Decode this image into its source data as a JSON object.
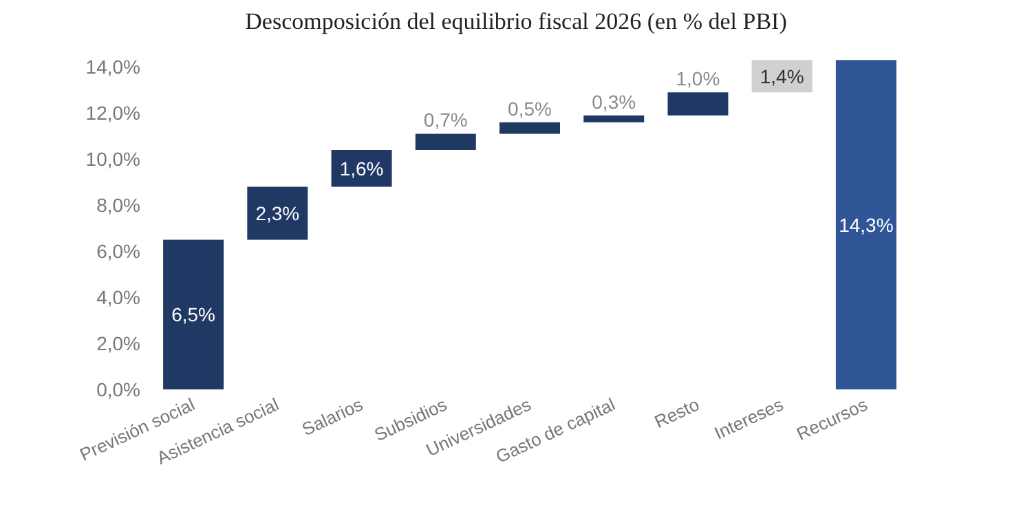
{
  "chart_data": {
    "type": "bar",
    "title": "Descomposición del equilibrio fiscal 2026 (en % del PBI)",
    "categories": [
      "Previsión social",
      "Asistencia social",
      "Salarios",
      "Subsidios",
      "Universidades",
      "Gasto de capital",
      "Resto",
      "Intereses",
      "Recursos"
    ],
    "values": [
      6.5,
      2.3,
      1.6,
      0.7,
      0.5,
      0.3,
      1.0,
      1.4,
      14.3
    ],
    "base": [
      0,
      6.5,
      8.8,
      10.4,
      11.1,
      11.6,
      11.9,
      12.9,
      0
    ],
    "colors": [
      "#1f3864",
      "#1f3864",
      "#1f3864",
      "#1f3864",
      "#1f3864",
      "#1f3864",
      "#1f3864",
      "#d0d0d0",
      "#2f5597"
    ],
    "value_labels": [
      "6,5%",
      "2,3%",
      "1,6%",
      "0,7%",
      "0,5%",
      "0,3%",
      "1,0%",
      "1,4%",
      "14,3%"
    ],
    "ylim": [
      0,
      14.4
    ],
    "yticks": [
      {
        "value": 0,
        "label": "0,0%"
      },
      {
        "value": 2,
        "label": "2,0%"
      },
      {
        "value": 4,
        "label": "4,0%"
      },
      {
        "value": 6,
        "label": "6,0%"
      },
      {
        "value": 8,
        "label": "8,0%"
      },
      {
        "value": 10,
        "label": "10,0%"
      },
      {
        "value": 12,
        "label": "12,0%"
      },
      {
        "value": 14,
        "label": "14,0%"
      }
    ],
    "grid": false
  }
}
